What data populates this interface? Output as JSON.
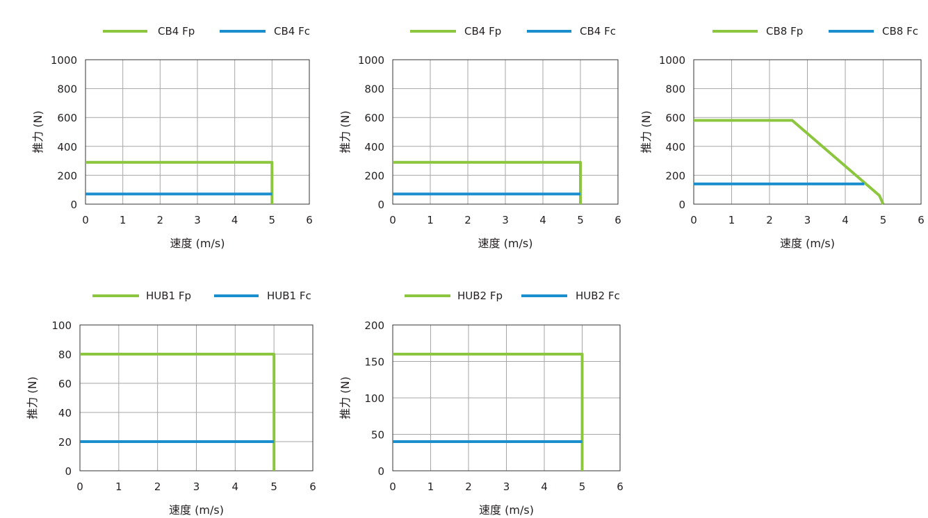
{
  "colors": {
    "fp": "#8cc63f",
    "fc": "#1b8fcd",
    "grid": "#a6a6a6",
    "frame": "#333333"
  },
  "chart_data": [
    {
      "type": "line",
      "xlabel": "速度 (m/s)",
      "ylabel": "推力 (N)",
      "xlim": [
        0,
        6
      ],
      "ylim": [
        0,
        1000
      ],
      "xticks": [
        0,
        1,
        2,
        3,
        4,
        5,
        6
      ],
      "yticks": [
        0,
        200,
        400,
        600,
        800,
        1000
      ],
      "grid": true,
      "legend": "top",
      "series": [
        {
          "name": "CB4 Fp",
          "color": "fp",
          "points": [
            [
              0,
              290
            ],
            [
              5,
              290
            ],
            [
              5,
              0
            ]
          ]
        },
        {
          "name": "CB4 Fc",
          "color": "fc",
          "points": [
            [
              0,
              70
            ],
            [
              5,
              70
            ]
          ]
        }
      ]
    },
    {
      "type": "line",
      "xlabel": "速度 (m/s)",
      "ylabel": "推力 (N)",
      "xlim": [
        0,
        6
      ],
      "ylim": [
        0,
        1000
      ],
      "xticks": [
        0,
        1,
        2,
        3,
        4,
        5,
        6
      ],
      "yticks": [
        0,
        200,
        400,
        600,
        800,
        1000
      ],
      "grid": true,
      "legend": "top",
      "series": [
        {
          "name": "CB4 Fp",
          "color": "fp",
          "points": [
            [
              0,
              290
            ],
            [
              5,
              290
            ],
            [
              5,
              0
            ]
          ]
        },
        {
          "name": "CB4 Fc",
          "color": "fc",
          "points": [
            [
              0,
              70
            ],
            [
              5,
              70
            ]
          ]
        }
      ]
    },
    {
      "type": "line",
      "xlabel": "速度 (m/s)",
      "ylabel": "推力 (N)",
      "xlim": [
        0,
        6
      ],
      "ylim": [
        0,
        1000
      ],
      "xticks": [
        0,
        1,
        2,
        3,
        4,
        5,
        6
      ],
      "yticks": [
        0,
        200,
        400,
        600,
        800,
        1000
      ],
      "grid": true,
      "legend": "top",
      "series": [
        {
          "name": "CB8 Fp",
          "color": "fp",
          "points": [
            [
              0,
              580
            ],
            [
              2.6,
              580
            ],
            [
              4.9,
              60
            ],
            [
              5,
              0
            ]
          ]
        },
        {
          "name": "CB8 Fc",
          "color": "fc",
          "points": [
            [
              0,
              140
            ],
            [
              4.5,
              140
            ]
          ]
        }
      ]
    },
    {
      "type": "line",
      "xlabel": "速度 (m/s)",
      "ylabel": "推力 (N)",
      "xlim": [
        0,
        6
      ],
      "ylim": [
        0,
        100
      ],
      "xticks": [
        0,
        1,
        2,
        3,
        4,
        5,
        6
      ],
      "yticks": [
        0,
        20,
        40,
        60,
        80,
        100
      ],
      "grid": true,
      "legend": "top",
      "series": [
        {
          "name": "HUB1 Fp",
          "color": "fp",
          "points": [
            [
              0,
              80
            ],
            [
              5,
              80
            ],
            [
              5,
              0
            ]
          ]
        },
        {
          "name": "HUB1 Fc",
          "color": "fc",
          "points": [
            [
              0,
              20
            ],
            [
              5,
              20
            ]
          ]
        }
      ]
    },
    {
      "type": "line",
      "xlabel": "速度 (m/s)",
      "ylabel": "推力 (N)",
      "xlim": [
        0,
        6
      ],
      "ylim": [
        0,
        200
      ],
      "xticks": [
        0,
        1,
        2,
        3,
        4,
        5,
        6
      ],
      "yticks": [
        0,
        50,
        100,
        150,
        200
      ],
      "grid": true,
      "legend": "top",
      "series": [
        {
          "name": "HUB2 Fp",
          "color": "fp",
          "points": [
            [
              0,
              160
            ],
            [
              5,
              160
            ],
            [
              5,
              0
            ]
          ]
        },
        {
          "name": "HUB2 Fc",
          "color": "fc",
          "points": [
            [
              0,
              40
            ],
            [
              5,
              40
            ]
          ]
        }
      ]
    }
  ]
}
